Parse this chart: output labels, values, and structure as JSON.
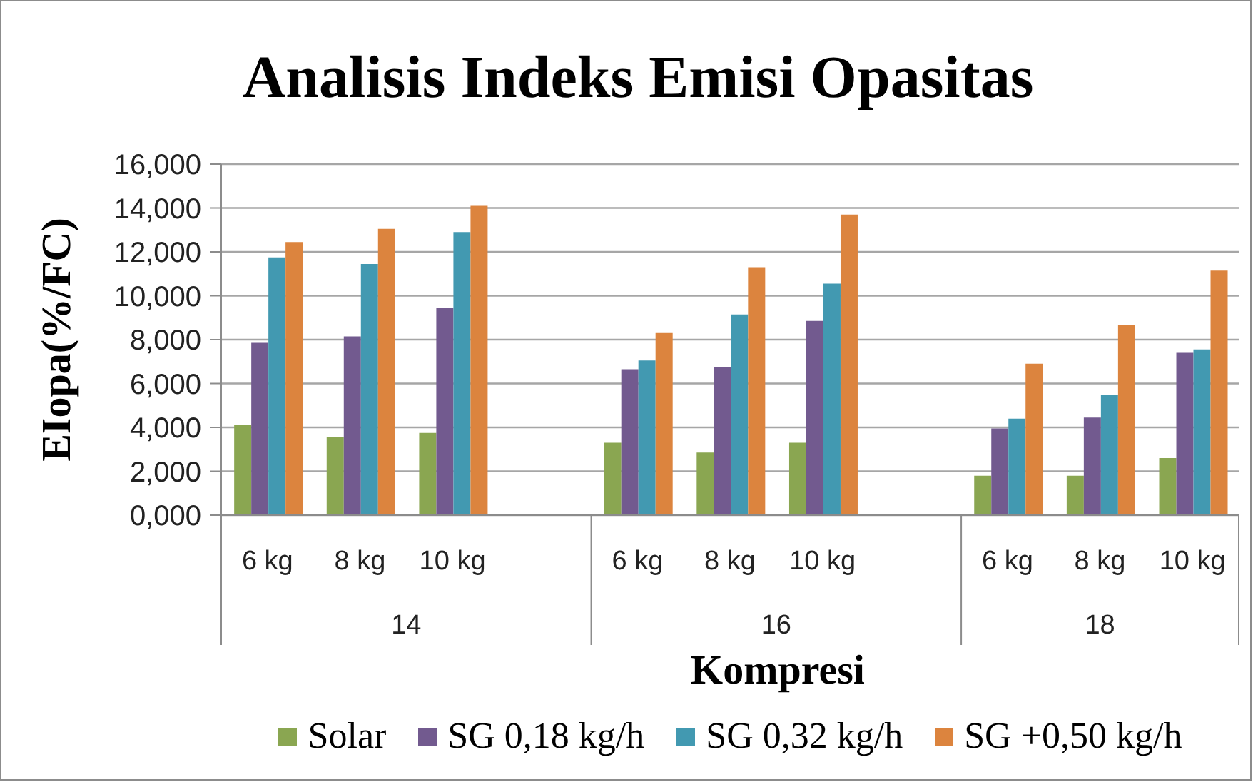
{
  "chart_data": {
    "type": "bar",
    "title": "Analisis Indeks Emisi Opasitas",
    "xlabel": "Kompresi",
    "ylabel": "EIopa(%/FC)",
    "categories": [
      "6 kg",
      "8 kg",
      "10 kg",
      null,
      "6 kg",
      "8 kg",
      "10 kg",
      null,
      "6 kg",
      "8 kg",
      "10 kg"
    ],
    "annotations": [
      "14",
      "16",
      "18"
    ],
    "series": [
      {
        "name": "Solar",
        "color": "#8aa651",
        "values": [
          4.1,
          3.55,
          3.75,
          null,
          3.3,
          2.85,
          3.3,
          null,
          1.8,
          1.8,
          2.6
        ]
      },
      {
        "name": "SG 0,18 kg/h",
        "color": "#725a8f",
        "values": [
          7.85,
          8.15,
          9.45,
          null,
          6.65,
          6.75,
          8.85,
          null,
          3.95,
          4.45,
          7.4
        ]
      },
      {
        "name": "SG 0,32 kg/h",
        "color": "#4299b1",
        "values": [
          11.75,
          11.45,
          12.9,
          null,
          7.05,
          9.15,
          10.55,
          null,
          4.4,
          5.5,
          7.55
        ]
      },
      {
        "name": "SG +0,50 kg/h",
        "color": "#dc843e",
        "values": [
          12.45,
          13.05,
          14.1,
          null,
          8.3,
          11.3,
          13.7,
          null,
          6.9,
          8.65,
          11.15
        ]
      }
    ],
    "ylim": [
      0,
      16
    ],
    "yticks": [
      {
        "value": 0,
        "label": "0,000"
      },
      {
        "value": 2,
        "label": "2,000"
      },
      {
        "value": 4,
        "label": "4,000"
      },
      {
        "value": 6,
        "label": "6,000"
      },
      {
        "value": 8,
        "label": "8,000"
      },
      {
        "value": 10,
        "label": "10,000"
      },
      {
        "value": 12,
        "label": "12,000"
      },
      {
        "value": 14,
        "label": "14,000"
      },
      {
        "value": 16,
        "label": "16,000"
      }
    ],
    "grid": "y",
    "legend": "bottom"
  }
}
